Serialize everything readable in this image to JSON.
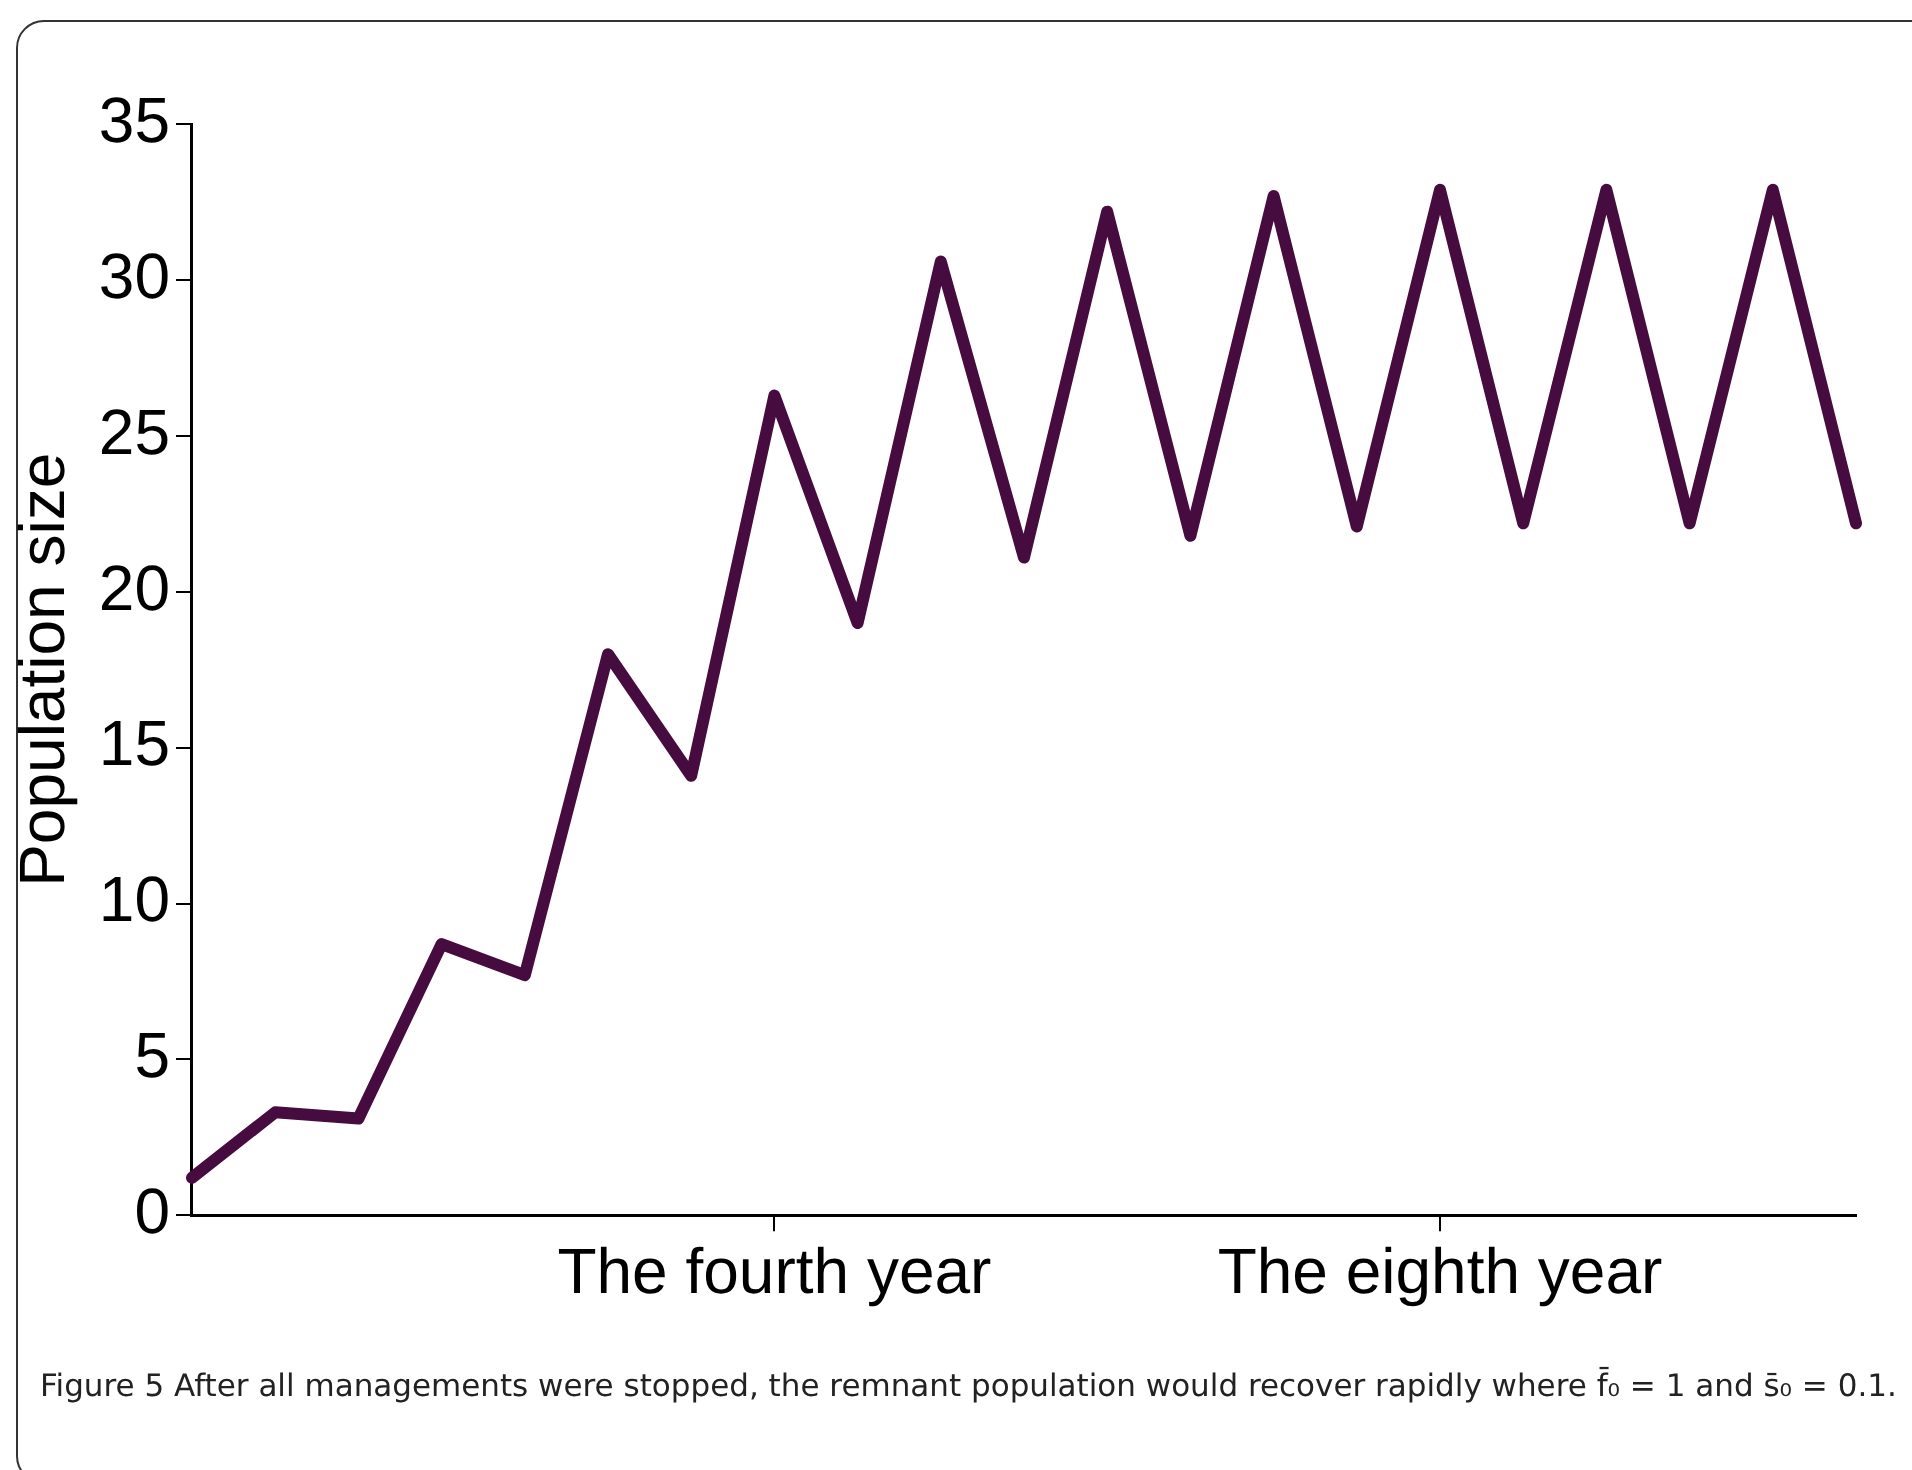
{
  "chart_data": {
    "type": "line",
    "ylabel": "Population size",
    "categories": [
      null,
      null,
      null,
      null,
      null,
      null,
      null,
      "The fourth year",
      null,
      null,
      null,
      null,
      null,
      null,
      null,
      "The eighth year",
      null,
      null,
      null,
      null,
      null
    ],
    "series": [
      {
        "color": "#470c3f",
        "values": [
          1.2,
          3.3,
          3.1,
          8.7,
          7.7,
          18.0,
          14.1,
          26.3,
          19.0,
          30.6,
          21.1,
          32.2,
          21.8,
          32.7,
          22.1,
          32.9,
          22.2,
          32.9,
          22.2,
          32.9,
          22.2
        ]
      }
    ],
    "ylim": [
      0,
      35
    ],
    "yticks": [
      0,
      5,
      10,
      15,
      20,
      25,
      30,
      35
    ],
    "grid": false,
    "legend": false,
    "marker": "none",
    "line_style": "solid",
    "annotations": [
      "Figure 5 After all managements were stopped, the remnant population would recover rapidly where f̄₀ = 1 and s̄₀ = 0.1."
    ]
  }
}
